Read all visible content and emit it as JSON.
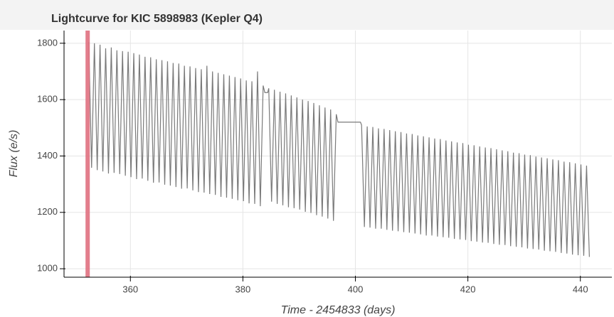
{
  "chart_data": {
    "type": "line",
    "title": "Lightcurve for KIC 5898983 (Kepler Q4)",
    "x_label": "Time - 2454833 (days)",
    "y_label": "Flux (e/s)",
    "xlim": [
      348.2,
      445.6
    ],
    "ylim": [
      970,
      1845
    ],
    "xticks": [
      360,
      380,
      400,
      420,
      440
    ],
    "yticks": [
      1000,
      1200,
      1400,
      1600,
      1800
    ],
    "grid": true,
    "highlight_x": 352.4,
    "highlight_color": "#e0707f",
    "series": [
      {
        "color": "#7a7a7a",
        "x": [
          352.6,
          353.1,
          353.6,
          354.1,
          354.6,
          355.1,
          355.6,
          356.1,
          356.6,
          357.1,
          357.6,
          358.1,
          358.6,
          359.1,
          359.6,
          360.1,
          360.6,
          361.1,
          361.6,
          362.1,
          362.6,
          363.1,
          363.6,
          364.1,
          364.6,
          365.1,
          365.6,
          366.1,
          366.6,
          367.1,
          367.6,
          368.1,
          368.6,
          369.1,
          369.6,
          370.1,
          370.6,
          371.1,
          371.6,
          372.1,
          372.6,
          373.1,
          373.6,
          374.1,
          374.6,
          375.1,
          375.6,
          376.1,
          376.6,
          377.1,
          377.6,
          378.1,
          378.6,
          379.1,
          379.6,
          380.1,
          380.6,
          381.1,
          381.6,
          382.1,
          382.6,
          383.1,
          383.6,
          383.9,
          384.4,
          384.6,
          385.1,
          385.6,
          386.1,
          386.6,
          387.1,
          387.6,
          388.1,
          388.6,
          389.1,
          389.6,
          390.1,
          390.6,
          391.1,
          391.6,
          392.1,
          392.6,
          393.1,
          393.6,
          394.1,
          394.6,
          395.1,
          395.6,
          396.1,
          396.6,
          396.9,
          400.9,
          401.1,
          401.6,
          402.1,
          402.6,
          403.1,
          403.6,
          404.1,
          404.6,
          405.1,
          405.6,
          406.1,
          406.6,
          407.1,
          407.6,
          408.1,
          408.6,
          409.1,
          409.6,
          410.1,
          410.6,
          411.1,
          411.6,
          412.1,
          412.6,
          413.1,
          413.6,
          414.1,
          414.6,
          415.1,
          415.6,
          416.1,
          416.6,
          417.1,
          417.6,
          418.1,
          418.6,
          419.1,
          419.6,
          420.1,
          420.6,
          421.1,
          421.6,
          422.1,
          422.6,
          423.1,
          423.6,
          424.1,
          424.6,
          425.1,
          425.6,
          426.1,
          426.6,
          427.1,
          427.6,
          428.1,
          428.6,
          429.1,
          429.6,
          430.1,
          430.6,
          431.1,
          431.6,
          432.1,
          432.6,
          433.1,
          433.6,
          434.1,
          434.6,
          435.1,
          435.6,
          436.1,
          436.6,
          437.1,
          437.6,
          438.1,
          438.6,
          439.1,
          439.6,
          440.1,
          440.6,
          441.1,
          441.6
        ],
        "values": [
          1805,
          1358,
          1800,
          1350,
          1795,
          1345,
          1782,
          1338,
          1785,
          1340,
          1775,
          1336,
          1772,
          1330,
          1770,
          1325,
          1765,
          1318,
          1760,
          1320,
          1752,
          1312,
          1750,
          1305,
          1743,
          1306,
          1740,
          1298,
          1736,
          1295,
          1730,
          1290,
          1728,
          1284,
          1720,
          1285,
          1718,
          1278,
          1712,
          1272,
          1708,
          1270,
          1720,
          1265,
          1700,
          1262,
          1695,
          1255,
          1690,
          1252,
          1685,
          1248,
          1680,
          1243,
          1675,
          1240,
          1668,
          1232,
          1665,
          1230,
          1700,
          1222,
          1650,
          1625,
          1625,
          1640,
          1238,
          1635,
          1230,
          1628,
          1225,
          1622,
          1218,
          1615,
          1215,
          1608,
          1210,
          1600,
          1202,
          1595,
          1198,
          1588,
          1190,
          1580,
          1185,
          1572,
          1178,
          1565,
          1170,
          1548,
          1520,
          1520,
          1510,
          1148,
          1505,
          1146,
          1503,
          1142,
          1498,
          1142,
          1496,
          1138,
          1492,
          1135,
          1488,
          1133,
          1485,
          1130,
          1480,
          1128,
          1478,
          1125,
          1473,
          1122,
          1470,
          1118,
          1466,
          1118,
          1462,
          1114,
          1460,
          1112,
          1455,
          1110,
          1452,
          1106,
          1448,
          1104,
          1446,
          1102,
          1440,
          1098,
          1438,
          1096,
          1434,
          1093,
          1430,
          1092,
          1428,
          1088,
          1424,
          1085,
          1420,
          1084,
          1417,
          1080,
          1412,
          1078,
          1410,
          1076,
          1405,
          1072,
          1403,
          1070,
          1398,
          1068,
          1395,
          1064,
          1392,
          1062,
          1388,
          1060,
          1385,
          1056,
          1380,
          1054,
          1378,
          1050,
          1374,
          1048,
          1370,
          1046,
          1366,
          1042
        ]
      }
    ]
  }
}
